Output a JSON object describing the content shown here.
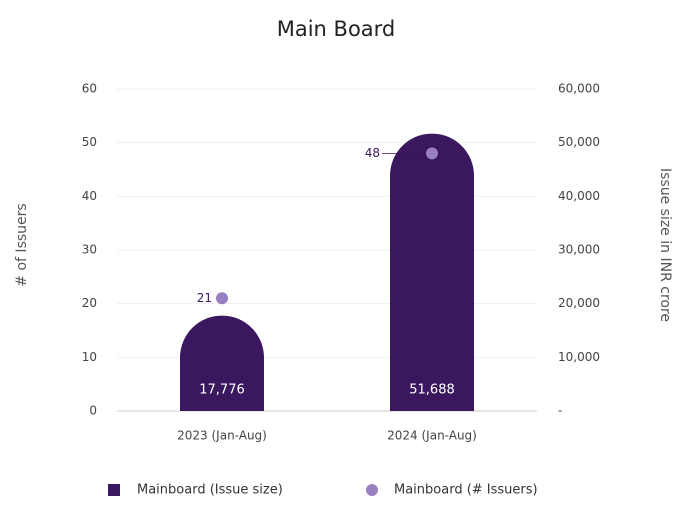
{
  "chart_data": {
    "type": "combo",
    "title": "Main Board",
    "categories": [
      "2023 (Jan-Aug)",
      "2024 (Jan-Aug)"
    ],
    "ylabel": "# of Issuers",
    "y2label": "Issue size in INR crore",
    "ylim": [
      0,
      60
    ],
    "yticks": [
      0,
      10,
      20,
      30,
      40,
      50,
      60
    ],
    "y2lim": [
      0,
      60000
    ],
    "y2ticks": [
      {
        "value": 0,
        "label": "-"
      },
      {
        "value": 10000,
        "label": "10,000"
      },
      {
        "value": 20000,
        "label": "20,000"
      },
      {
        "value": 30000,
        "label": "30,000"
      },
      {
        "value": 40000,
        "label": "40,000"
      },
      {
        "value": 50000,
        "label": "50,000"
      },
      {
        "value": 60000,
        "label": "60,000"
      }
    ],
    "grid": true,
    "series": [
      {
        "name": "Mainboard (Issue size)",
        "type": "bar",
        "axis": "y2",
        "color": "#3a175f",
        "values": [
          17776,
          51688
        ],
        "value_labels": [
          "17,776",
          "51,688"
        ]
      },
      {
        "name": "Mainboard (# Issuers)",
        "type": "scatter",
        "color": "#9a80c0",
        "values": [
          21,
          48
        ]
      }
    ]
  }
}
